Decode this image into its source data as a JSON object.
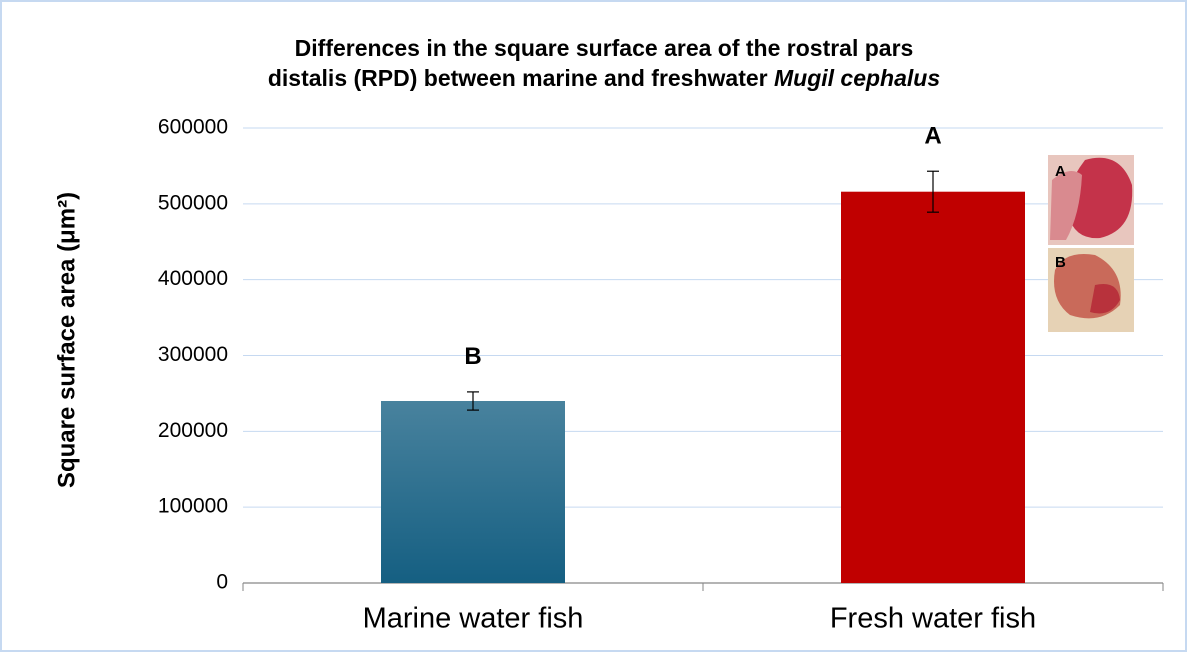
{
  "chart_data": {
    "type": "bar",
    "title_line1": "Differences in the square surface area of the rostral pars",
    "title_line2": "distalis (RPD) between marine and freshwater",
    "title_species": "Mugil cephalus",
    "ylabel": "Square surface area  (μm²)",
    "categories": [
      "Marine water fish",
      "Fresh water fish"
    ],
    "values": [
      240000,
      516000
    ],
    "errors": [
      12000,
      27000
    ],
    "significance_labels": [
      "B",
      "A"
    ],
    "colors": [
      "#155f82",
      "#c00000"
    ],
    "ylim": [
      0,
      600000
    ],
    "yticks": [
      0,
      100000,
      200000,
      300000,
      400000,
      500000,
      600000
    ],
    "grid": true,
    "inset_labels": [
      "A",
      "B"
    ]
  }
}
